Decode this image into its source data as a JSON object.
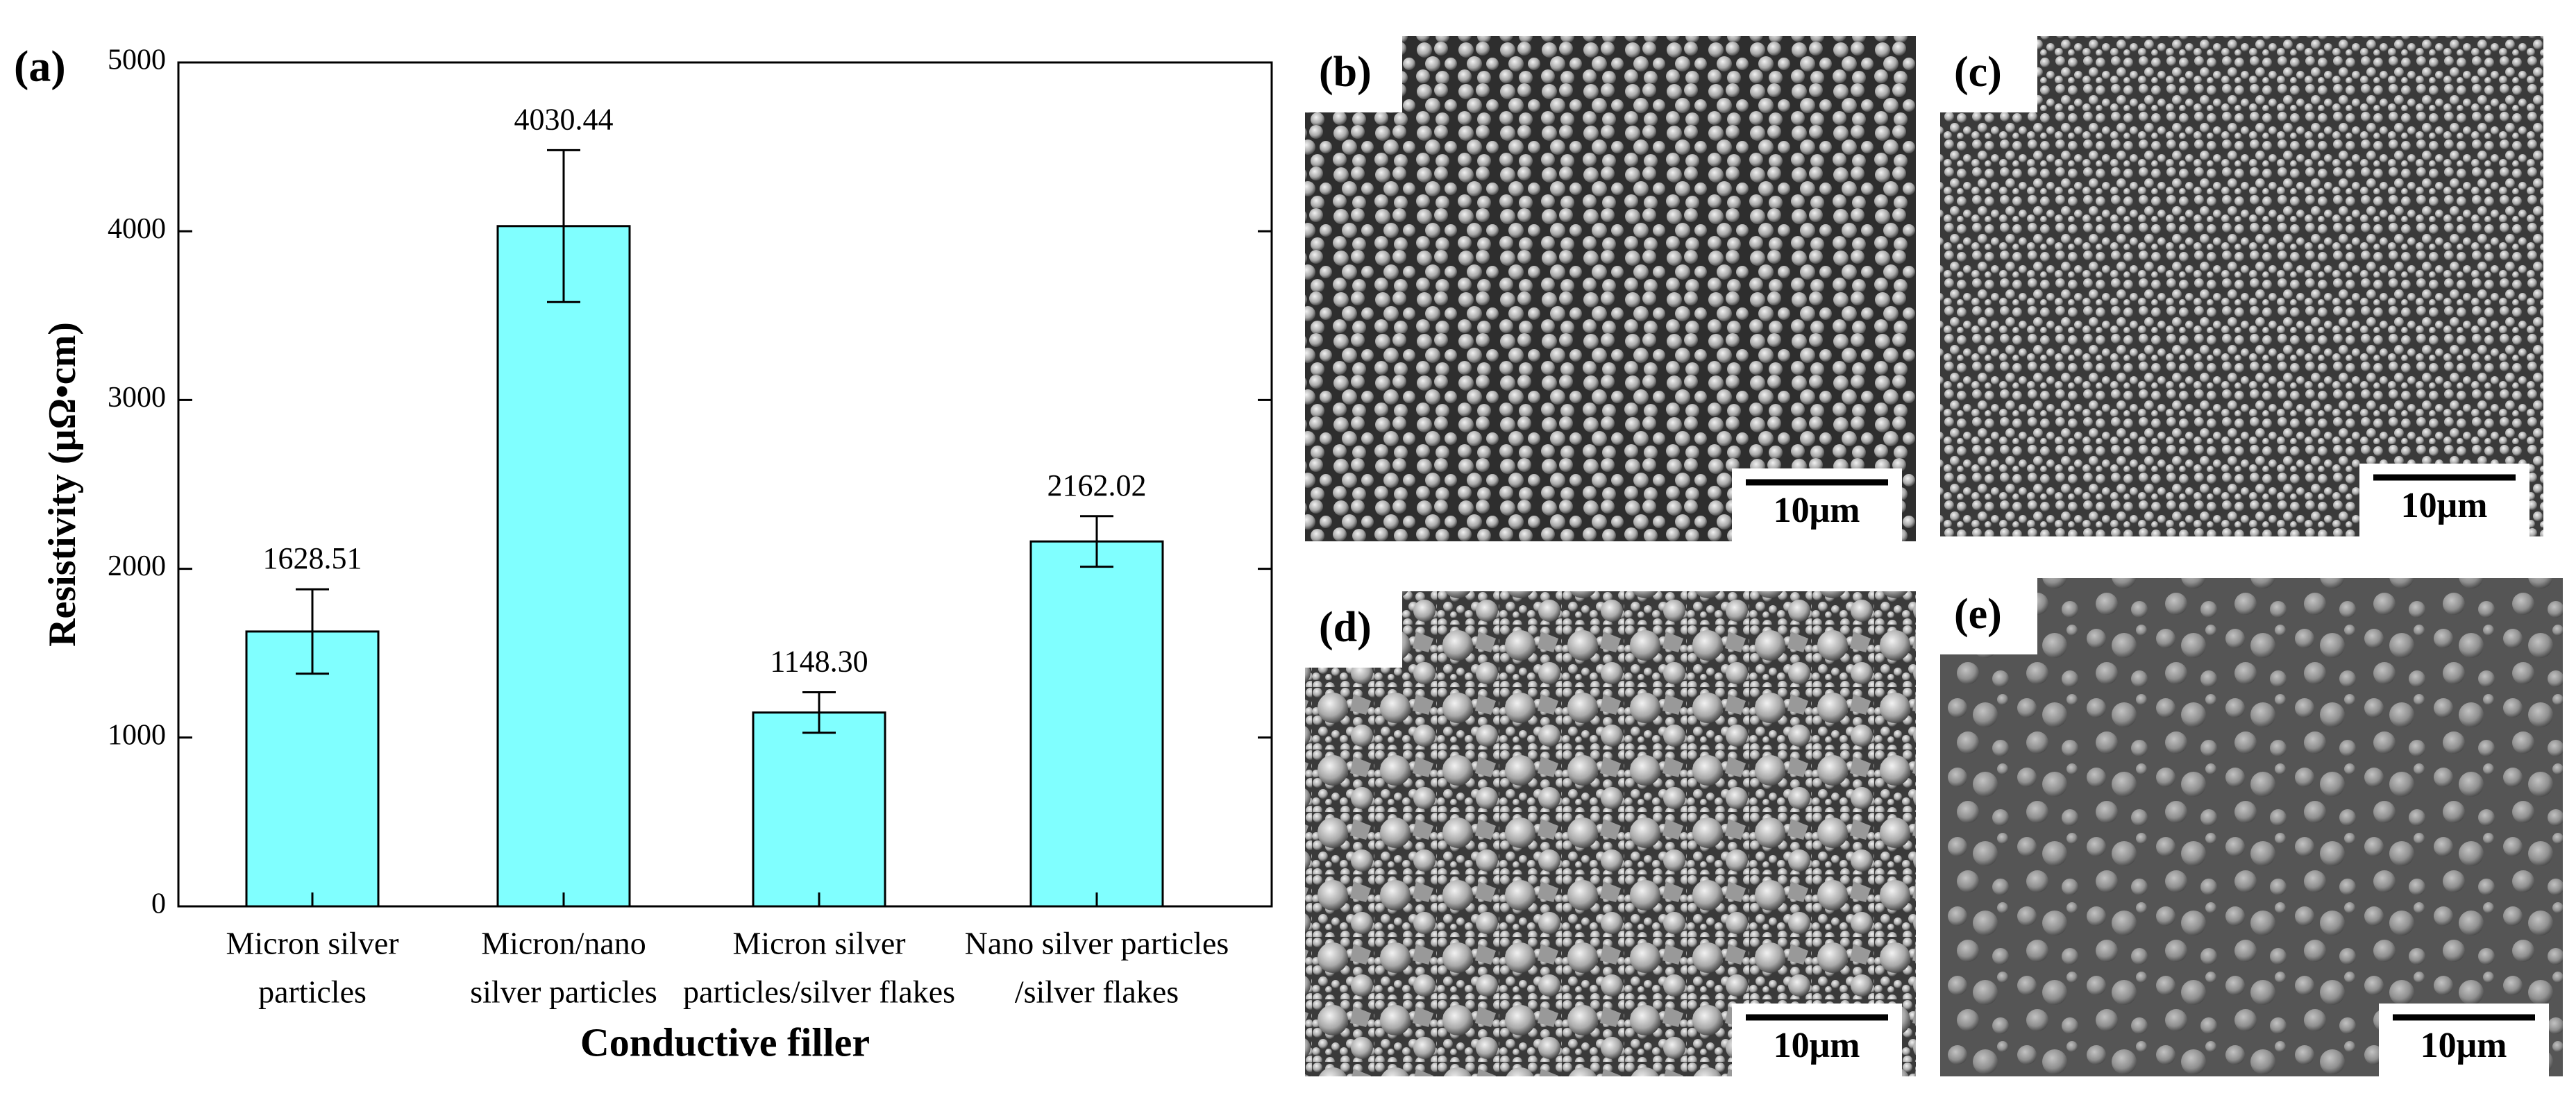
{
  "chart_data": {
    "type": "bar",
    "panel_label": "(a)",
    "y_label": "Resistivity (μΩ•cm)",
    "x_label": "Conductive filler",
    "categories": [
      [
        "Micron silver",
        "particles"
      ],
      [
        "Micron/nano",
        "silver particles"
      ],
      [
        "Micron silver",
        "particles/silver flakes"
      ],
      [
        "Nano silver particles",
        "/silver flakes"
      ]
    ],
    "values": [
      1628.51,
      4030.44,
      1148.3,
      2162.02
    ],
    "value_labels": [
      "1628.51",
      "4030.44",
      "1148.30",
      "2162.02"
    ],
    "errors": [
      250,
      450,
      120,
      150
    ],
    "color": "#80ffff",
    "ylim": [
      0,
      5000
    ],
    "yticks": [
      0,
      1000,
      2000,
      3000,
      4000,
      5000
    ]
  },
  "images": [
    {
      "label": "(b)",
      "scale_bar": "10μm"
    },
    {
      "label": "(c)",
      "scale_bar": "10μm"
    },
    {
      "label": "(d)",
      "scale_bar": "10μm"
    },
    {
      "label": "(e)",
      "scale_bar": "10μm"
    }
  ]
}
